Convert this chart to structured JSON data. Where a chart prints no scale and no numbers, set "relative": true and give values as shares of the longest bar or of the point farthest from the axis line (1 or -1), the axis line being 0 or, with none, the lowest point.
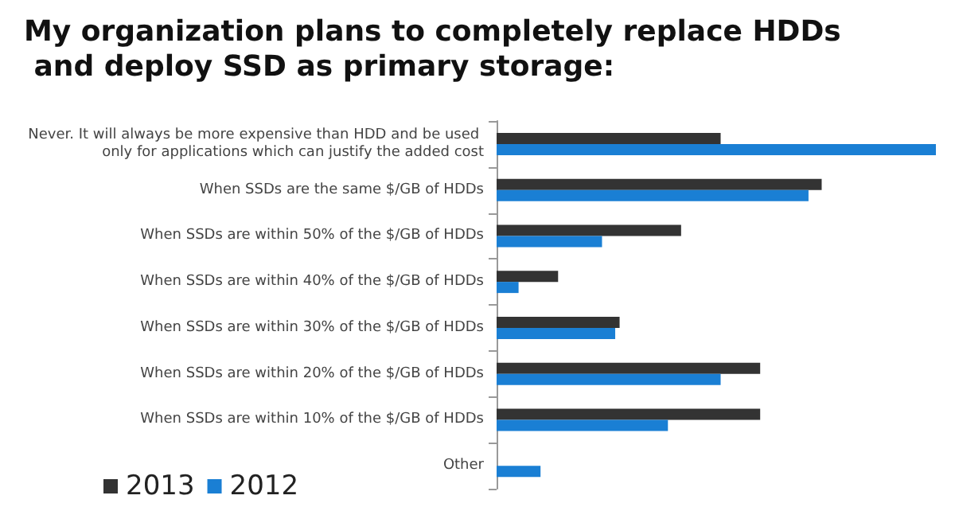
{
  "chart_data": {
    "type": "bar",
    "orientation": "horizontal",
    "relative": true,
    "title": "My organization plans to completely replace HDDs and deploy SSD as primary storage:",
    "categories": [
      "Never. It will always be more expensive than HDD and be used only for applications which can justify the added cost",
      "When SSDs are the same $/GB of HDDs",
      "When SSDs are within 50% of the $/GB of HDDs",
      "When SSDs are within 40% of the $/GB of HDDs",
      "When SSDs are within 30% of the $/GB of HDDs",
      "When SSDs are within 20% of the $/GB of HDDs",
      "When SSDs are within 10% of the $/GB of HDDs",
      "Other"
    ],
    "series": [
      {
        "name": "2013",
        "color": "#333333",
        "values": [
          0.51,
          0.74,
          0.42,
          0.14,
          0.28,
          0.6,
          0.6,
          0
        ]
      },
      {
        "name": "2012",
        "color": "#1a7fd4",
        "values": [
          1,
          0.71,
          0.24,
          0.05,
          0.27,
          0.51,
          0.39,
          0.1
        ]
      }
    ],
    "legend": "bottom left"
  }
}
